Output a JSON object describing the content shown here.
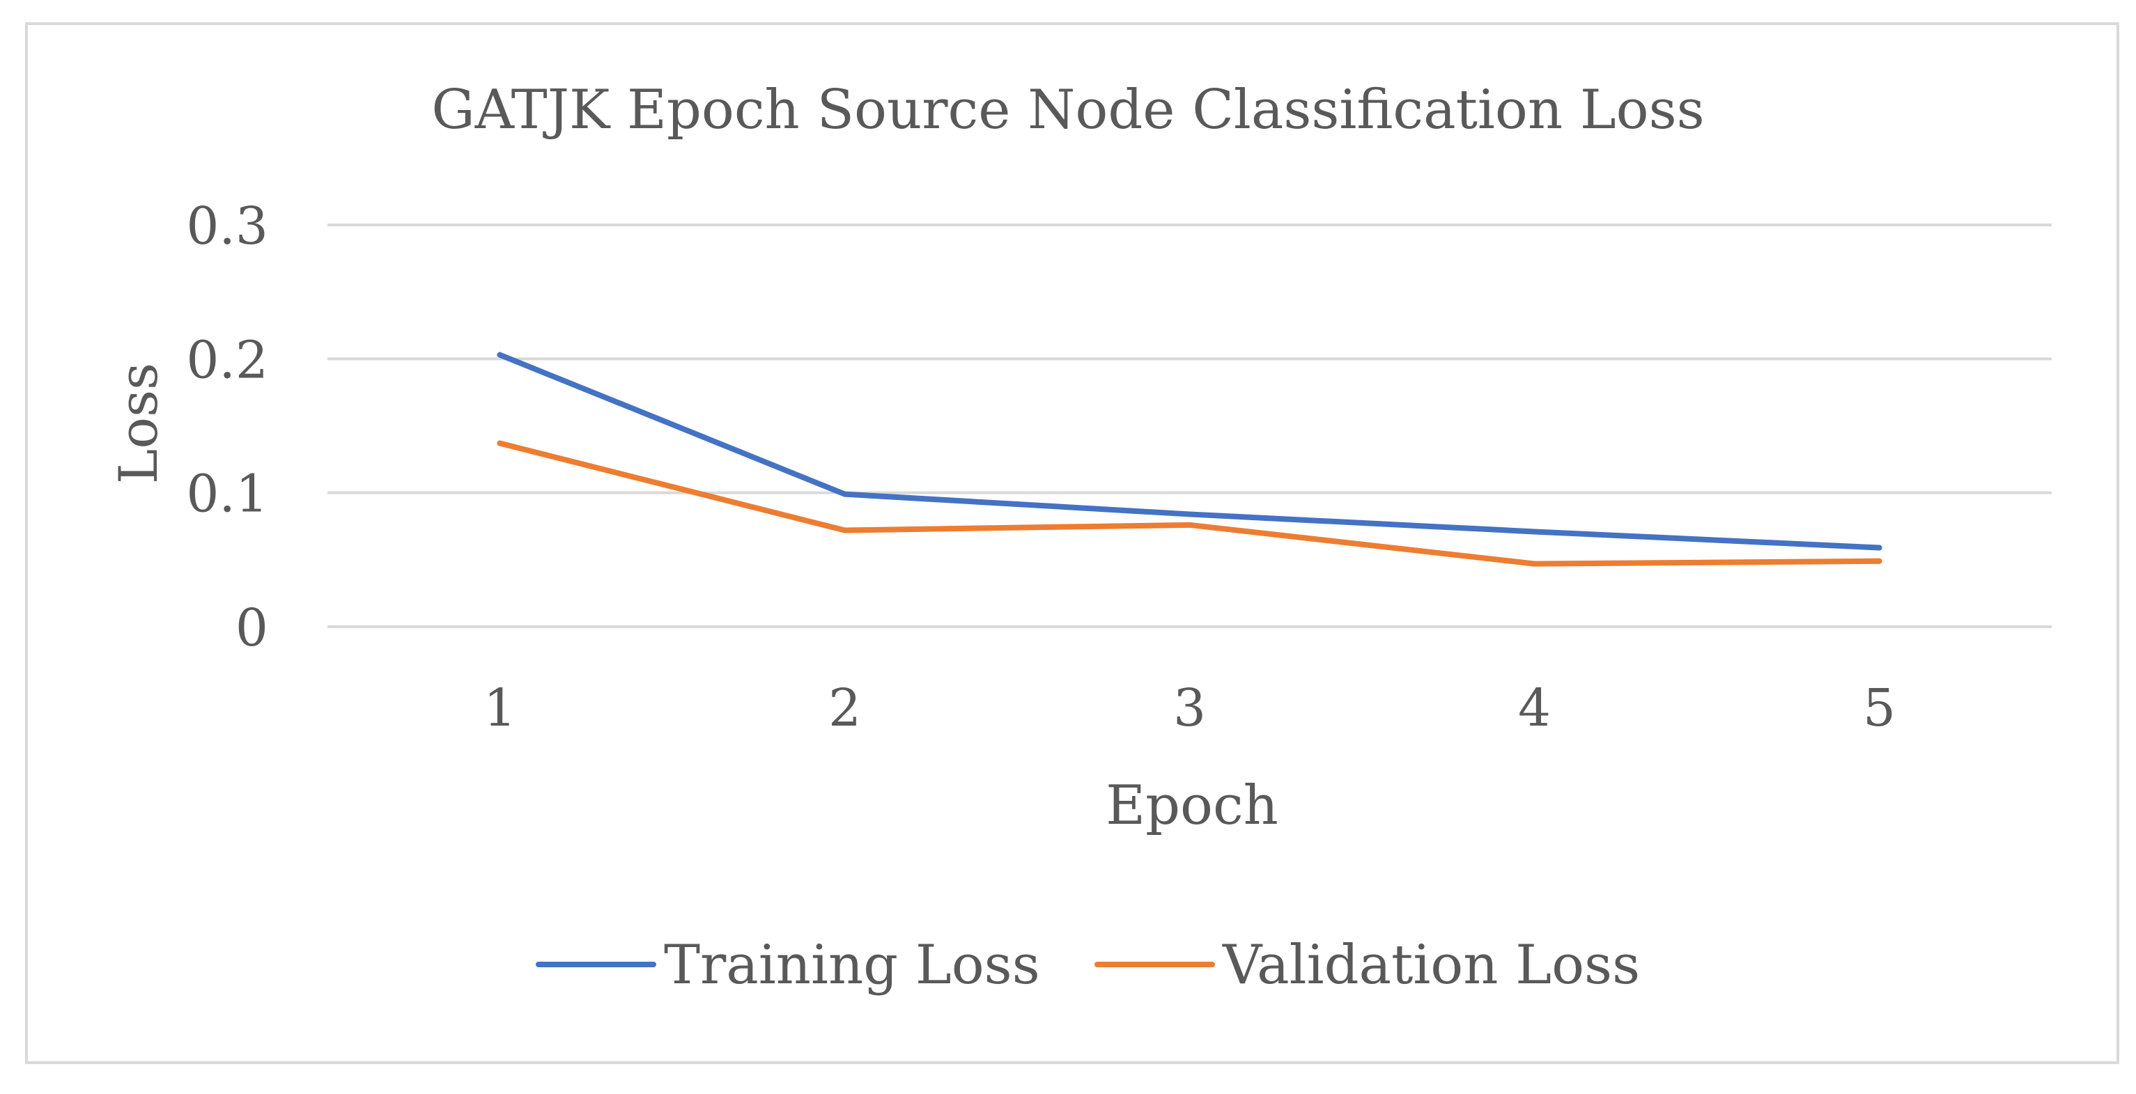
{
  "chart_data": {
    "type": "line",
    "title": "GATJK Epoch Source Node Classification Loss",
    "xlabel": "Epoch",
    "ylabel": "Loss",
    "categories": [
      "1",
      "2",
      "3",
      "4",
      "5"
    ],
    "ylim": [
      0,
      0.3
    ],
    "yticks": [
      0,
      0.1,
      0.2,
      0.3
    ],
    "ytick_labels": [
      "0",
      "0.1",
      "0.2",
      "0.3"
    ],
    "grid": true,
    "legend_position": "bottom",
    "series": [
      {
        "name": "Training Loss",
        "color": "#4472c4",
        "values": [
          0.203,
          0.099,
          0.084,
          0.071,
          0.059
        ]
      },
      {
        "name": "Validation Loss",
        "color": "#ed7d31",
        "values": [
          0.137,
          0.072,
          0.076,
          0.047,
          0.049
        ]
      }
    ],
    "gridline_color": "#d9d9d9",
    "text_color": "#595959"
  }
}
